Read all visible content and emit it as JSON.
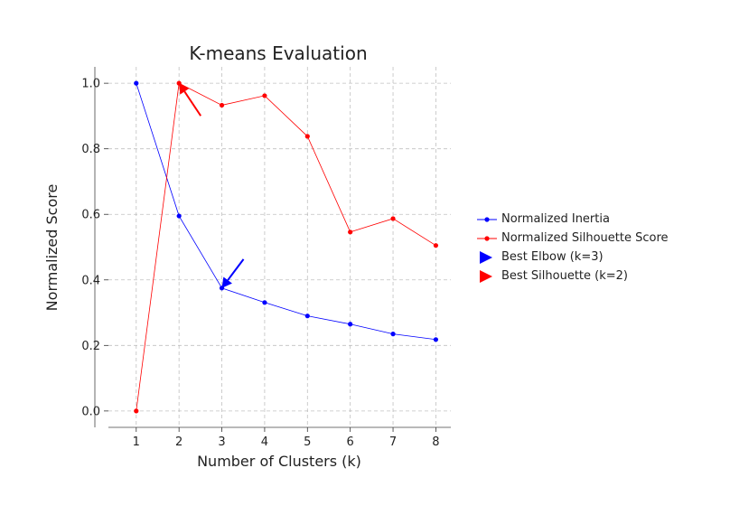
{
  "chart_data": {
    "type": "line",
    "title": "K-means Evaluation",
    "xlabel": "Number of Clusters (k)",
    "ylabel": "Normalized Score",
    "x": [
      1,
      2,
      3,
      4,
      5,
      6,
      7,
      8
    ],
    "xlim": [
      0.35,
      8.35
    ],
    "ylim": [
      -0.05,
      1.05
    ],
    "xticks": [
      "1",
      "2",
      "3",
      "4",
      "5",
      "6",
      "7",
      "8"
    ],
    "yticks": [
      "0.0",
      "0.2",
      "0.4",
      "0.6",
      "0.8",
      "1.0"
    ],
    "grid": true,
    "legend_position": "right-outside",
    "series": [
      {
        "name": "Normalized Inertia",
        "color": "#0000ff",
        "values": [
          1.0,
          0.595,
          0.375,
          0.331,
          0.29,
          0.265,
          0.235,
          0.218
        ]
      },
      {
        "name": "Normalized Silhouette Score",
        "color": "#ff0000",
        "values": [
          0.0,
          1.0,
          0.933,
          0.962,
          0.838,
          0.546,
          0.587,
          0.505
        ]
      }
    ],
    "annotations": [
      {
        "name": "Best Elbow (k=3)",
        "color": "#0000ff",
        "k": 3,
        "value": 0.375
      },
      {
        "name": "Best Silhouette (k=2)",
        "color": "#ff0000",
        "k": 2,
        "value": 1.0
      }
    ]
  }
}
